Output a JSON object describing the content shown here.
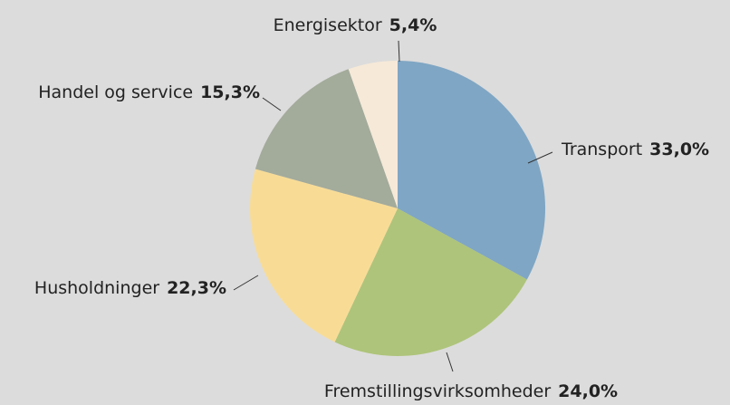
{
  "chart_data": {
    "type": "pie",
    "categories": [
      "Transport",
      "Fremstillingsvirksomheder",
      "Husholdninger",
      "Handel og service",
      "Energisektor"
    ],
    "values": [
      33.0,
      24.0,
      22.3,
      15.3,
      5.4
    ],
    "value_labels": [
      "33,0%",
      "24,0%",
      "22,3%",
      "15,3%",
      "5,4%"
    ],
    "colors": [
      "#7fa6c4",
      "#aec47a",
      "#f8dc96",
      "#a3ab9b",
      "#f6e9d8"
    ]
  }
}
